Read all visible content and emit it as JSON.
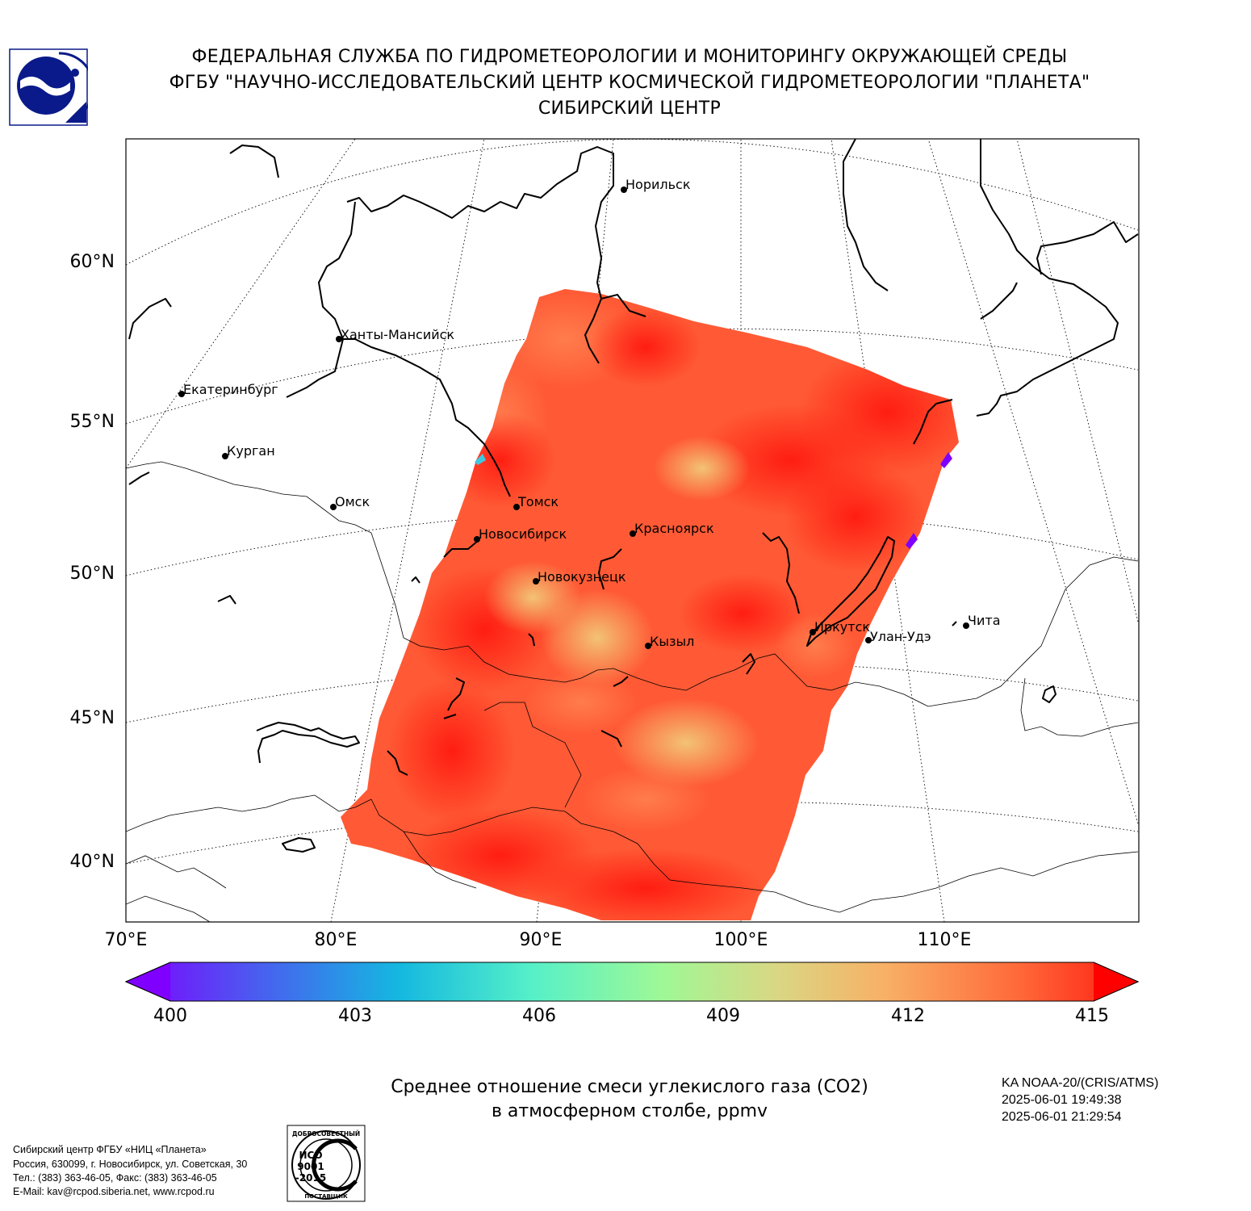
{
  "header": {
    "line1": "ФЕДЕРАЛЬНАЯ СЛУЖБА ПО ГИДРОМЕТЕОРОЛОГИИ И МОНИТОРИНГУ ОКРУЖАЮЩЕЙ СРЕДЫ",
    "line2": "ФГБУ \"НАУЧНО-ИССЛЕДОВАТЕЛЬСКИЙ ЦЕНТР КОСМИЧЕСКОЙ ГИДРОМЕТЕОРОЛОГИИ \"ПЛАНЕТА\"",
    "line3": "СИБИРСКИЙ ЦЕНТР"
  },
  "map": {
    "lat_labels": [
      "60°N",
      "55°N",
      "50°N",
      "45°N",
      "40°N"
    ],
    "lon_labels": [
      "70°E",
      "80°E",
      "90°E",
      "100°E",
      "110°E"
    ],
    "cities": [
      {
        "name": "Норильск"
      },
      {
        "name": "Ханты-Мансийск"
      },
      {
        "name": "Екатеринбург"
      },
      {
        "name": "Курган"
      },
      {
        "name": "Омск"
      },
      {
        "name": "Томск"
      },
      {
        "name": "Новосибирск"
      },
      {
        "name": "Красноярск"
      },
      {
        "name": "Новокузнецк"
      },
      {
        "name": "Кызыл"
      },
      {
        "name": "Иркутск"
      },
      {
        "name": "Улан-Удэ"
      },
      {
        "name": "Чита"
      }
    ]
  },
  "colorbar": {
    "min": 400,
    "max": 415,
    "ticks": [
      "400",
      "403",
      "406",
      "409",
      "412",
      "415"
    ],
    "colors": [
      "#7f00ff",
      "#4a5df0",
      "#14b8e0",
      "#55f0c8",
      "#9ff896",
      "#d8d884",
      "#f8b066",
      "#ff6a3a",
      "#ff1a10"
    ]
  },
  "caption": {
    "line1": "Среднее отношение смеси углекислого газа (CO2)",
    "line2": "в атмосферном столбе, ppmv"
  },
  "satellite": {
    "name": "KA NOAA-20/(CRIS/ATMS)",
    "time1": "2025-06-01 19:49:38",
    "time2": "2025-06-01 21:29:54"
  },
  "footer": {
    "line1": "Сибирский центр ФГБУ «НИЦ «Планета»",
    "line2": "Россия, 630099, г. Новосибирск, ул. Советская, 30",
    "line3": "Тел.: (383) 363-46-05, Факс: (383) 363-46-05",
    "line4": "E-Mail: kav@rcpod.siberia.net, www.rcpod.ru"
  },
  "iso": {
    "top": "ДОБРОСОВЕСТНЫЙ",
    "l1": "ИСО",
    "l2": "9001",
    "l3": "-2015",
    "bottom": "ПОСТАВЩИК"
  }
}
